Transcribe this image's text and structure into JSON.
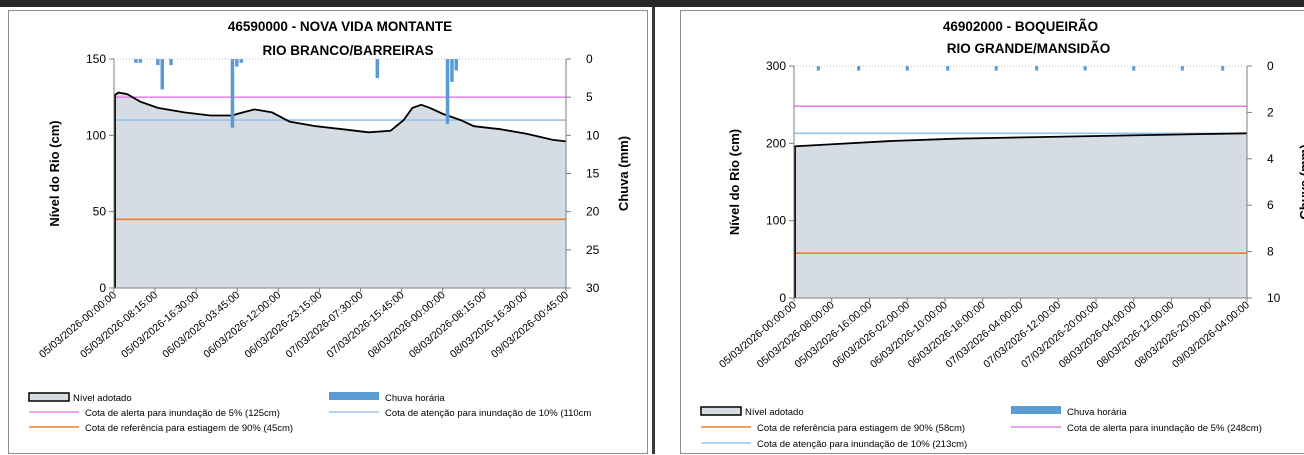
{
  "chart_data": [
    {
      "type": "line",
      "title": "46590000 - NOVA VIDA  MONTANTE",
      "subtitle": "RIO BRANCO/BARREIRAS",
      "ylabel": "Nível do Rio (cm)",
      "y2label": "Chuva (mm)",
      "ylim": [
        0,
        150
      ],
      "y2lim": [
        0,
        30
      ],
      "y2_inverted": true,
      "yticks": [
        "0",
        "50",
        "100",
        "150"
      ],
      "y2ticks": [
        "0",
        "5",
        "10",
        "15",
        "20",
        "25",
        "30"
      ],
      "x_tick_labels": [
        "05/03/2026-00:00:00",
        "05/03/2026-08:15:00",
        "05/03/2026-16:30:00",
        "06/03/2026-03:45:00",
        "06/03/2026-12:00:00",
        "06/03/2026-23:15:00",
        "07/03/2026-07:30:00",
        "07/03/2026-15:45:00",
        "08/03/2026-00:00:00",
        "08/03/2026-08:15:00",
        "08/03/2026-16:30:00",
        "09/03/2026-00:45:00"
      ],
      "level_series": {
        "name": "Nível adotado",
        "x_hours": [
          0,
          1,
          3,
          6,
          10,
          16,
          22,
          27,
          28,
          32,
          36,
          40,
          46,
          52,
          58,
          63,
          66,
          68,
          70,
          72,
          75,
          79,
          82,
          88,
          94,
          100,
          103
        ],
        "values": [
          126,
          128,
          127,
          122,
          118,
          115,
          113,
          113,
          114,
          117,
          115,
          109,
          106,
          104,
          102,
          103,
          110,
          118,
          120,
          118,
          114,
          110,
          106,
          104,
          101,
          97,
          96
        ]
      },
      "rain_series": {
        "name": "Chuva horária",
        "x_hours": [
          5,
          6,
          10,
          11,
          13,
          27,
          28,
          29,
          60,
          76,
          77,
          78
        ],
        "values": [
          0.5,
          0.5,
          0.8,
          4.0,
          0.8,
          9.0,
          1.0,
          0.5,
          2.5,
          8.5,
          3.0,
          1.5
        ]
      },
      "reference_lines": [
        {
          "name": "Cota de alerta para inundação de 5% (125cm)",
          "value": 125,
          "color": "#e986e9"
        },
        {
          "name": "Cota de atenção para inundação de 10% (110cm)",
          "value": 110,
          "color": "#9dc3e6"
        },
        {
          "name": "Cota de referência para estiagem de 90% (45cm)",
          "value": 45,
          "color": "#ed7d31"
        }
      ],
      "legend": {
        "placement": "bottom",
        "items": [
          {
            "label": "Nível adotado",
            "kind": "area"
          },
          {
            "label": "Chuva horária",
            "kind": "bar"
          },
          {
            "label": "Cota de alerta para inundação de 5% (125cm)",
            "kind": "line",
            "color": "#e986e9"
          },
          {
            "label": "Cota de atenção para inundação de 10% (110cm",
            "kind": "line",
            "color": "#9dc3e6"
          },
          {
            "label": "Cota de referência para estiagem de 90% (45cm)",
            "kind": "line",
            "color": "#ed7d31"
          }
        ]
      }
    },
    {
      "type": "line",
      "title": "46902000 - BOQUEIRÃO",
      "subtitle": "RIO GRANDE/MANSIDÃO",
      "ylabel": "Nível do Rio (cm)",
      "y2label": "Chuva (mm)",
      "ylim": [
        0,
        300
      ],
      "y2lim": [
        0,
        10
      ],
      "y2_inverted": true,
      "yticks": [
        "0",
        "100",
        "200",
        "300"
      ],
      "y2ticks": [
        "0",
        "2",
        "4",
        "6",
        "8",
        "10"
      ],
      "x_tick_labels": [
        "05/03/2026-00:00:00",
        "05/03/2026-08:00:00",
        "05/03/2026-16:00:00",
        "06/03/2026-02:00:00",
        "06/03/2026-10:00:00",
        "06/03/2026-18:00:00",
        "07/03/2026-04:00:00",
        "07/03/2026-12:00:00",
        "07/03/2026-20:00:00",
        "08/03/2026-04:00:00",
        "08/03/2026-12:00:00",
        "08/03/2026-20:00:00",
        "09/03/2026-04:00:00"
      ],
      "level_series": {
        "name": "Nível adotado",
        "x_hours": [
          0,
          10,
          24,
          40,
          60,
          80,
          100,
          112
        ],
        "values": [
          196,
          199,
          203,
          206,
          208,
          210,
          212,
          213
        ]
      },
      "rain_series": {
        "name": "Chuva horária",
        "x_hours": [
          6,
          16,
          28,
          38,
          50,
          60,
          72,
          84,
          96,
          106
        ],
        "values": [
          0.2,
          0.2,
          0.2,
          0.2,
          0.2,
          0.2,
          0.2,
          0.2,
          0.2,
          0.2
        ]
      },
      "reference_lines": [
        {
          "name": "Cota de referência para estiagem de 90% (58cm)",
          "value": 58,
          "color": "#ed7d31"
        },
        {
          "name": "Cota de alerta para inundação de 5% (248cm)",
          "value": 248,
          "color": "#e986e9"
        },
        {
          "name": "Cota de atenção para inundação de 10% (213cm)",
          "value": 213,
          "color": "#9dc3e6"
        }
      ],
      "legend": {
        "placement": "bottom",
        "items": [
          {
            "label": "Nível adotado",
            "kind": "area"
          },
          {
            "label": "Chuva horária",
            "kind": "bar"
          },
          {
            "label": "Cota de referência para estiagem de 90% (58cm)",
            "kind": "line",
            "color": "#ed7d31"
          },
          {
            "label": "Cota de alerta para inundação de 5% (248cm)",
            "kind": "line",
            "color": "#e986e9"
          },
          {
            "label": "Cota de atenção para inundação de 10% (213cm)",
            "kind": "line",
            "color": "#9dc3e6"
          }
        ]
      }
    }
  ],
  "colors": {
    "area_fill": "#d6dce4",
    "level_line": "#000000",
    "rain_bar": "#5b9bd5"
  }
}
